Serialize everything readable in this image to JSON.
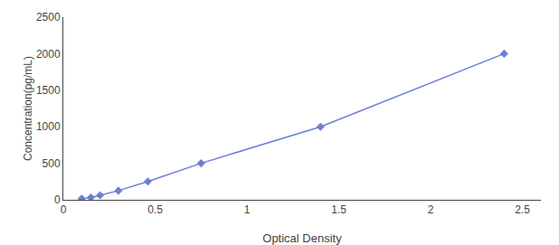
{
  "chart_data": {
    "type": "line",
    "xlabel": "Optical Density",
    "ylabel": "Concentration(pg/mL)",
    "x": [
      0.1,
      0.15,
      0.2,
      0.3,
      0.46,
      0.75,
      1.4,
      2.4
    ],
    "values": [
      15.6,
      31.25,
      62.5,
      125,
      250,
      500,
      1000,
      2000
    ],
    "color": "#6b7fd4",
    "marker": "diamond",
    "line_style": "solid",
    "xlim": [
      0.0,
      2.6
    ],
    "ylim": [
      0,
      2500
    ],
    "xticks": [
      0,
      0.5,
      1,
      1.5,
      2,
      2.5
    ],
    "yticks": [
      0,
      500,
      1000,
      1500,
      2000,
      2500
    ],
    "grid": false
  }
}
